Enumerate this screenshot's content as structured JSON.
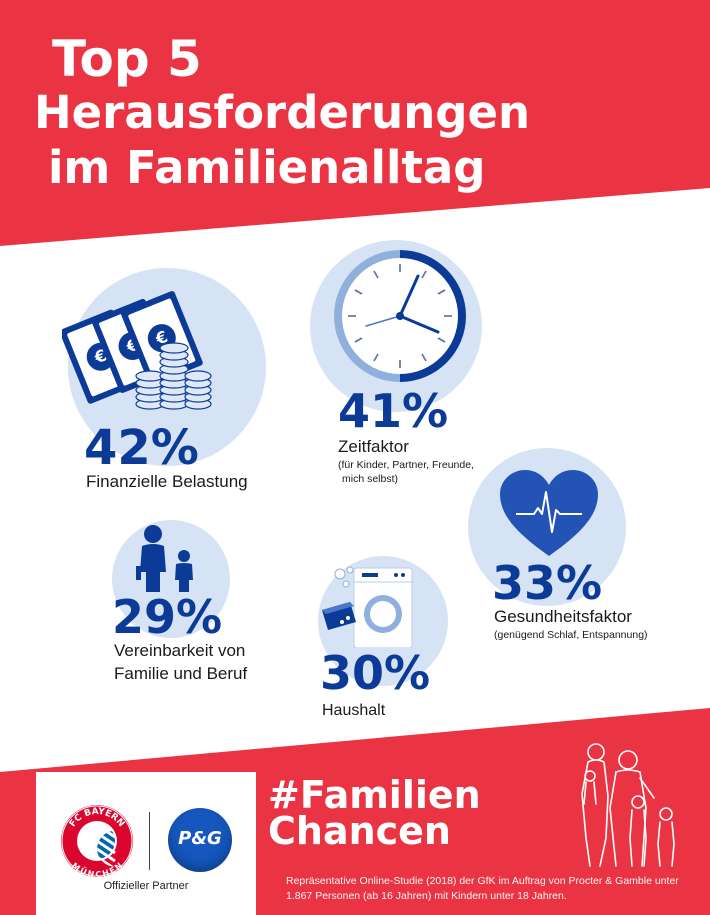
{
  "title": {
    "line1": "Top 5",
    "line2": "Herausforderungen",
    "line3": "im Familienalltag"
  },
  "items": [
    {
      "percent": "42%",
      "label": "Finanzielle Belastung",
      "icon": "money-icon"
    },
    {
      "percent": "41%",
      "label": "Zeitfaktor",
      "sublabel_line1": "(für Kinder, Partner, Freunde,",
      "sublabel_line2": "mich selbst)",
      "icon": "clock-icon"
    },
    {
      "percent": "33%",
      "label": "Gesundheitsfaktor",
      "sublabel_line1": "(genügend Schlaf, Entspannung)",
      "icon": "heart-icon"
    },
    {
      "percent": "29%",
      "label_line1": "Vereinbarkeit von",
      "label_line2": "Familie und Beruf",
      "icon": "parent-child-icon"
    },
    {
      "percent": "30%",
      "label": "Haushalt",
      "icon": "washing-machine-icon"
    }
  ],
  "footer": {
    "partner_label": "Offizieller Partner",
    "hashtag_line1": "#Familien",
    "hashtag_line2": "Chancen",
    "footnote": "Repräsentative Online-Studie (2018) der GfK im Auftrag von Procter & Gamble unter 1.867 Personen (ab 16 Jahren) mit Kindern unter 18 Jahren.",
    "logos": {
      "fcb_ring_top": "FC BAYERN",
      "fcb_ring_bottom": "MÜNCHEN",
      "pg": "P&G"
    }
  },
  "colors": {
    "red": "#ea3443",
    "blue": "#0c3b97",
    "light_blue": "#d6e3f4",
    "mid_blue": "#8fb0dc"
  }
}
